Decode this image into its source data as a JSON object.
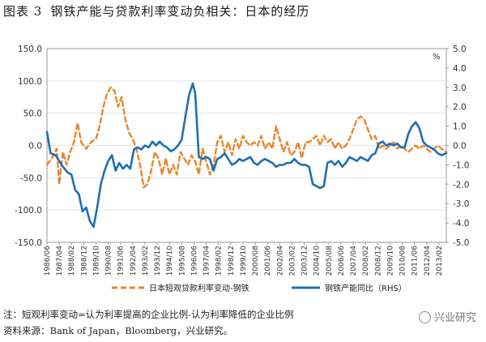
{
  "figure": {
    "label": "图表 3",
    "title": "钢铁产能与贷款利率变动负相关：日本的经历"
  },
  "notes": {
    "note": "注：短观利率变动=认为利率提高的企业比例-认为利率降低的企业比例",
    "source": "资料来源：Bank of Japan，Bloomberg，兴业研究。"
  },
  "watermark": "兴业研究",
  "chart_data": {
    "type": "line",
    "unit_right": "%",
    "left_axis": {
      "min": -150,
      "max": 150,
      "ticks": [
        "150.0",
        "100.0",
        "50.0",
        "0.0",
        "-50.0",
        "-100.0",
        "-150.0"
      ]
    },
    "right_axis": {
      "min": -5,
      "max": 5,
      "ticks": [
        "5.0",
        "4.0",
        "3.0",
        "2.0",
        "1.0",
        "0.0",
        "-1.0",
        "-2.0",
        "-3.0",
        "-4.0",
        "-5.0"
      ]
    },
    "x_ticks": [
      "1986/06",
      "1987/04",
      "1988/02",
      "1988/12",
      "1989/10",
      "1990/08",
      "1991/06",
      "1992/04",
      "1993/02",
      "1993/12",
      "1994/10",
      "1995/08",
      "1996/06",
      "1997/04",
      "1998/02",
      "1998/12",
      "1999/10",
      "2000/08",
      "2001/06",
      "2002/04",
      "2003/02",
      "2003/12",
      "2004/10",
      "2005/08",
      "2006/06",
      "2007/04",
      "2008/02",
      "2008/12",
      "2009/10",
      "2010/08",
      "2011/06",
      "2012/04",
      "2013/02"
    ],
    "x_range": [
      0,
      32.6
    ],
    "series": [
      {
        "name": "日本短观贷款利率变动-钢铁",
        "axis": "left",
        "color": "#E8872A",
        "style": "dashed",
        "points": [
          [
            0,
            -30
          ],
          [
            0.4,
            -20
          ],
          [
            0.8,
            -5
          ],
          [
            1,
            -60
          ],
          [
            1.3,
            -10
          ],
          [
            1.6,
            -30
          ],
          [
            1.9,
            -10
          ],
          [
            2.2,
            5
          ],
          [
            2.5,
            35
          ],
          [
            2.8,
            5
          ],
          [
            3.2,
            -5
          ],
          [
            3.6,
            5
          ],
          [
            4,
            10
          ],
          [
            4.3,
            30
          ],
          [
            4.6,
            60
          ],
          [
            4.9,
            80
          ],
          [
            5.2,
            90
          ],
          [
            5.5,
            85
          ],
          [
            5.8,
            60
          ],
          [
            6.1,
            75
          ],
          [
            6.4,
            40
          ],
          [
            6.7,
            20
          ],
          [
            7,
            10
          ],
          [
            7.3,
            -5
          ],
          [
            7.6,
            -30
          ],
          [
            7.9,
            -65
          ],
          [
            8.2,
            -60
          ],
          [
            8.5,
            -40
          ],
          [
            8.8,
            -10
          ],
          [
            9.1,
            -20
          ],
          [
            9.4,
            -45
          ],
          [
            9.7,
            -20
          ],
          [
            10,
            -45
          ],
          [
            10.3,
            -30
          ],
          [
            10.6,
            -45
          ],
          [
            10.9,
            -10
          ],
          [
            11.2,
            -20
          ],
          [
            11.5,
            -30
          ],
          [
            11.8,
            -15
          ],
          [
            12.1,
            -25
          ],
          [
            12.4,
            -45
          ],
          [
            12.7,
            -5
          ],
          [
            13,
            -25
          ],
          [
            13.3,
            -45
          ],
          [
            13.6,
            -30
          ],
          [
            13.9,
            5
          ],
          [
            14.2,
            15
          ],
          [
            14.5,
            -10
          ],
          [
            14.8,
            5
          ],
          [
            15.1,
            -15
          ],
          [
            15.4,
            10
          ],
          [
            15.7,
            -5
          ],
          [
            16,
            15
          ],
          [
            16.3,
            5
          ],
          [
            16.6,
            0
          ],
          [
            16.9,
            5
          ],
          [
            17.2,
            0
          ],
          [
            17.5,
            15
          ],
          [
            17.8,
            -5
          ],
          [
            18.1,
            5
          ],
          [
            18.4,
            -5
          ],
          [
            18.7,
            30
          ],
          [
            19,
            10
          ],
          [
            19.3,
            -10
          ],
          [
            19.6,
            5
          ],
          [
            19.9,
            -15
          ],
          [
            20.2,
            -10
          ],
          [
            20.5,
            5
          ],
          [
            20.8,
            -20
          ],
          [
            21.1,
            5
          ],
          [
            21.4,
            5
          ],
          [
            21.7,
            10
          ],
          [
            22,
            15
          ],
          [
            22.3,
            0
          ],
          [
            22.6,
            15
          ],
          [
            22.9,
            5
          ],
          [
            23.2,
            10
          ],
          [
            23.5,
            -5
          ],
          [
            23.8,
            5
          ],
          [
            24.1,
            -5
          ],
          [
            24.4,
            0
          ],
          [
            24.7,
            10
          ],
          [
            25,
            25
          ],
          [
            25.3,
            40
          ],
          [
            25.6,
            45
          ],
          [
            25.9,
            40
          ],
          [
            26.2,
            25
          ],
          [
            26.5,
            10
          ],
          [
            26.8,
            15
          ],
          [
            27.1,
            -5
          ],
          [
            27.4,
            0
          ],
          [
            27.7,
            -5
          ],
          [
            28,
            0
          ],
          [
            28.3,
            5
          ],
          [
            28.6,
            -5
          ],
          [
            28.9,
            0
          ],
          [
            29.2,
            -5
          ],
          [
            29.5,
            -10
          ],
          [
            29.8,
            -5
          ],
          [
            30.1,
            0
          ],
          [
            30.4,
            -5
          ],
          [
            30.7,
            0
          ],
          [
            31,
            -5
          ],
          [
            31.3,
            -10
          ],
          [
            31.6,
            -5
          ],
          [
            31.9,
            0
          ],
          [
            32.2,
            -5
          ],
          [
            32.6,
            -10
          ]
        ]
      },
      {
        "name": "钢铁产能同比（RHS）",
        "axis": "right",
        "color": "#1F6FB2",
        "style": "solid",
        "points": [
          [
            0,
            0.7
          ],
          [
            0.3,
            -0.4
          ],
          [
            0.7,
            -0.5
          ],
          [
            1,
            -0.8
          ],
          [
            1.3,
            -1.1
          ],
          [
            1.7,
            -1.4
          ],
          [
            2,
            -1.5
          ],
          [
            2.3,
            -2.3
          ],
          [
            2.6,
            -2.5
          ],
          [
            2.9,
            -3.4
          ],
          [
            3.2,
            -3.2
          ],
          [
            3.5,
            -3.9
          ],
          [
            3.8,
            -4.2
          ],
          [
            4.1,
            -3.2
          ],
          [
            4.4,
            -2.0
          ],
          [
            4.7,
            -1.3
          ],
          [
            5,
            -0.8
          ],
          [
            5.3,
            -0.5
          ],
          [
            5.6,
            -1.3
          ],
          [
            5.9,
            -0.9
          ],
          [
            6.2,
            -1.2
          ],
          [
            6.5,
            -1.0
          ],
          [
            6.8,
            -1.2
          ],
          [
            7.1,
            -0.2
          ],
          [
            7.4,
            -0.1
          ],
          [
            7.7,
            -0.2
          ],
          [
            8,
            0.0
          ],
          [
            8.3,
            -0.1
          ],
          [
            8.6,
            0.2
          ],
          [
            8.9,
            0.0
          ],
          [
            9.2,
            0.2
          ],
          [
            9.5,
            0.0
          ],
          [
            9.8,
            -0.1
          ],
          [
            10.1,
            -0.3
          ],
          [
            10.4,
            -0.2
          ],
          [
            10.7,
            0.0
          ],
          [
            11,
            0.3
          ],
          [
            11.3,
            1.5
          ],
          [
            11.6,
            2.6
          ],
          [
            11.9,
            3.2
          ],
          [
            12.1,
            2.7
          ],
          [
            12.4,
            -0.6
          ],
          [
            12.7,
            -0.7
          ],
          [
            13,
            -0.6
          ],
          [
            13.3,
            -0.7
          ],
          [
            13.6,
            -1.3
          ],
          [
            13.9,
            -0.7
          ],
          [
            14.2,
            -0.6
          ],
          [
            14.5,
            -0.4
          ],
          [
            14.8,
            -0.7
          ],
          [
            15.1,
            -1.0
          ],
          [
            15.4,
            -0.9
          ],
          [
            15.7,
            -0.7
          ],
          [
            16,
            -0.8
          ],
          [
            16.3,
            -0.7
          ],
          [
            16.6,
            -0.6
          ],
          [
            16.9,
            -0.9
          ],
          [
            17.2,
            -1.0
          ],
          [
            17.5,
            -0.8
          ],
          [
            17.8,
            -0.7
          ],
          [
            18.1,
            -0.8
          ],
          [
            18.4,
            -0.9
          ],
          [
            18.7,
            -1.1
          ],
          [
            19,
            -1.0
          ],
          [
            19.3,
            -1.0
          ],
          [
            19.6,
            -0.9
          ],
          [
            19.9,
            -0.9
          ],
          [
            20.2,
            -0.7
          ],
          [
            20.5,
            -0.9
          ],
          [
            20.8,
            -1.0
          ],
          [
            21.1,
            -1.0
          ],
          [
            21.4,
            -1.1
          ],
          [
            21.7,
            -2.0
          ],
          [
            22,
            -2.1
          ],
          [
            22.3,
            -2.2
          ],
          [
            22.6,
            -2.1
          ],
          [
            22.9,
            -0.9
          ],
          [
            23.2,
            -0.8
          ],
          [
            23.5,
            -1.0
          ],
          [
            23.8,
            -0.8
          ],
          [
            24.1,
            -1.1
          ],
          [
            24.4,
            -0.9
          ],
          [
            24.7,
            -0.6
          ],
          [
            25,
            -0.7
          ],
          [
            25.3,
            -0.8
          ],
          [
            25.6,
            -0.6
          ],
          [
            25.9,
            -0.7
          ],
          [
            26.2,
            -0.8
          ],
          [
            26.5,
            -0.5
          ],
          [
            26.8,
            -0.4
          ],
          [
            27.1,
            0.1
          ],
          [
            27.4,
            0.2
          ],
          [
            27.7,
            0.0
          ],
          [
            28,
            0.1
          ],
          [
            28.3,
            0.0
          ],
          [
            28.6,
            0.1
          ],
          [
            28.9,
            -0.1
          ],
          [
            29.2,
            -0.1
          ],
          [
            29.5,
            0.6
          ],
          [
            29.8,
            1.0
          ],
          [
            30.1,
            1.2
          ],
          [
            30.4,
            0.9
          ],
          [
            30.7,
            0.2
          ],
          [
            31,
            0.0
          ],
          [
            31.3,
            -0.1
          ],
          [
            31.6,
            -0.2
          ],
          [
            31.9,
            -0.4
          ],
          [
            32.2,
            -0.5
          ],
          [
            32.6,
            -0.4
          ]
        ]
      }
    ]
  }
}
